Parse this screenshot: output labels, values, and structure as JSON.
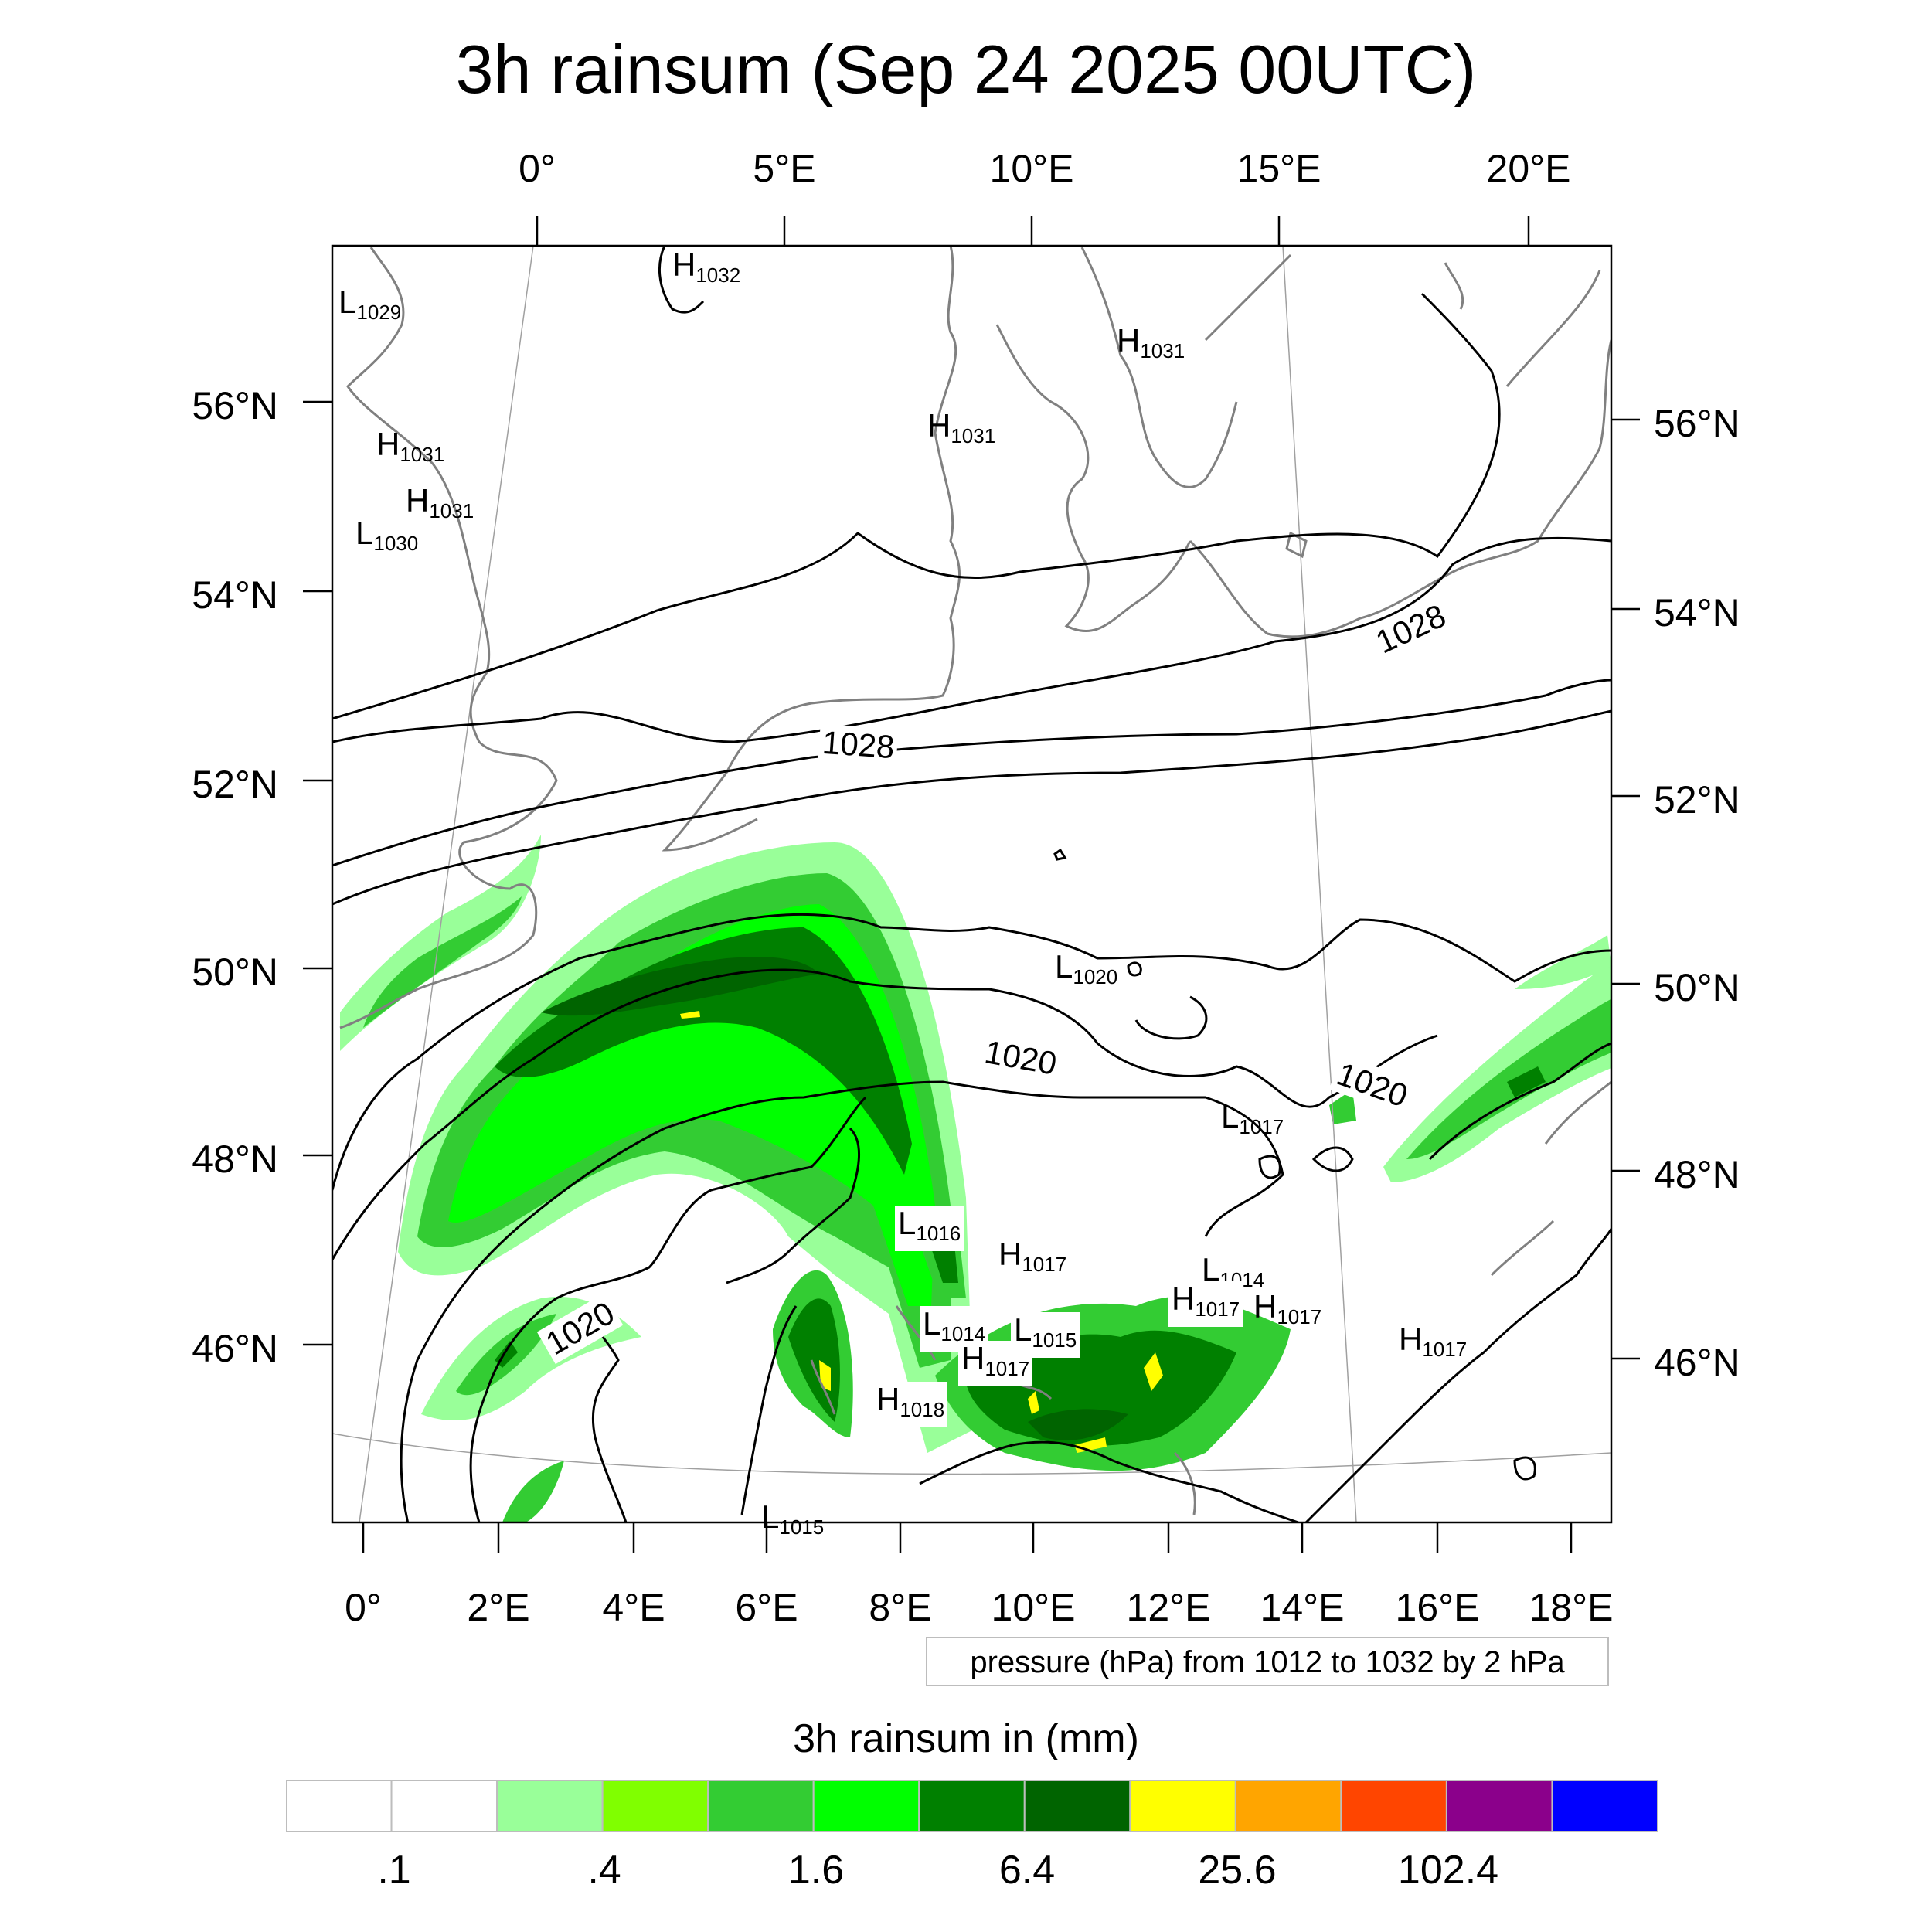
{
  "title": "3h rainsum (Sep 24 2025 00UTC)",
  "top_lon_labels": [
    "0°",
    "5°E",
    "10°E",
    "15°E",
    "20°E"
  ],
  "bottom_lon_labels": [
    "0°",
    "2°E",
    "4°E",
    "6°E",
    "8°E",
    "10°E",
    "12°E",
    "14°E",
    "16°E",
    "18°E"
  ],
  "left_lat_labels": [
    "56°N",
    "54°N",
    "52°N",
    "50°N",
    "48°N",
    "46°N"
  ],
  "right_lat_labels": [
    "56°N",
    "54°N",
    "52°N",
    "50°N",
    "48°N",
    "46°N"
  ],
  "pressure_centers": [
    {
      "kind": "H",
      "value": "1032"
    },
    {
      "kind": "L",
      "value": "1029"
    },
    {
      "kind": "H",
      "value": "1031"
    },
    {
      "kind": "H",
      "value": "1031"
    },
    {
      "kind": "H",
      "value": "1031"
    },
    {
      "kind": "H",
      "value": "1031"
    },
    {
      "kind": "L",
      "value": "1030"
    },
    {
      "kind": "L",
      "value": "1020"
    },
    {
      "kind": "L",
      "value": "1017"
    },
    {
      "kind": "L",
      "value": "1016"
    },
    {
      "kind": "H",
      "value": "1017"
    },
    {
      "kind": "L",
      "value": "1014"
    },
    {
      "kind": "H",
      "value": "1017"
    },
    {
      "kind": "H",
      "value": "1017"
    },
    {
      "kind": "L",
      "value": "1014"
    },
    {
      "kind": "L",
      "value": "1015"
    },
    {
      "kind": "H",
      "value": "1017"
    },
    {
      "kind": "H",
      "value": "1018"
    },
    {
      "kind": "H",
      "value": "1017"
    },
    {
      "kind": "L",
      "value": "1015"
    }
  ],
  "isobar_labels": [
    "1028",
    "1028",
    "1020",
    "1020",
    "1020"
  ],
  "contour_info": "pressure (hPa) from 1012 to 1032 by 2 hPa",
  "colorbar": {
    "title": "3h rainsum in (mm)",
    "colors": [
      "#ffffff",
      "#ffffff",
      "#99ff99",
      "#80ff00",
      "#33cc33",
      "#00ff00",
      "#008000",
      "#006400",
      "#ffff00",
      "#ffa500",
      "#ff4500",
      "#8b008b",
      "#0000ff"
    ],
    "labels": [
      ".1",
      ".4",
      "1.6",
      "6.4",
      "25.6",
      "102.4"
    ]
  },
  "colors": {
    "coastline": "#808080",
    "isobar": "#000000",
    "graticule": "#a0a0a0"
  }
}
